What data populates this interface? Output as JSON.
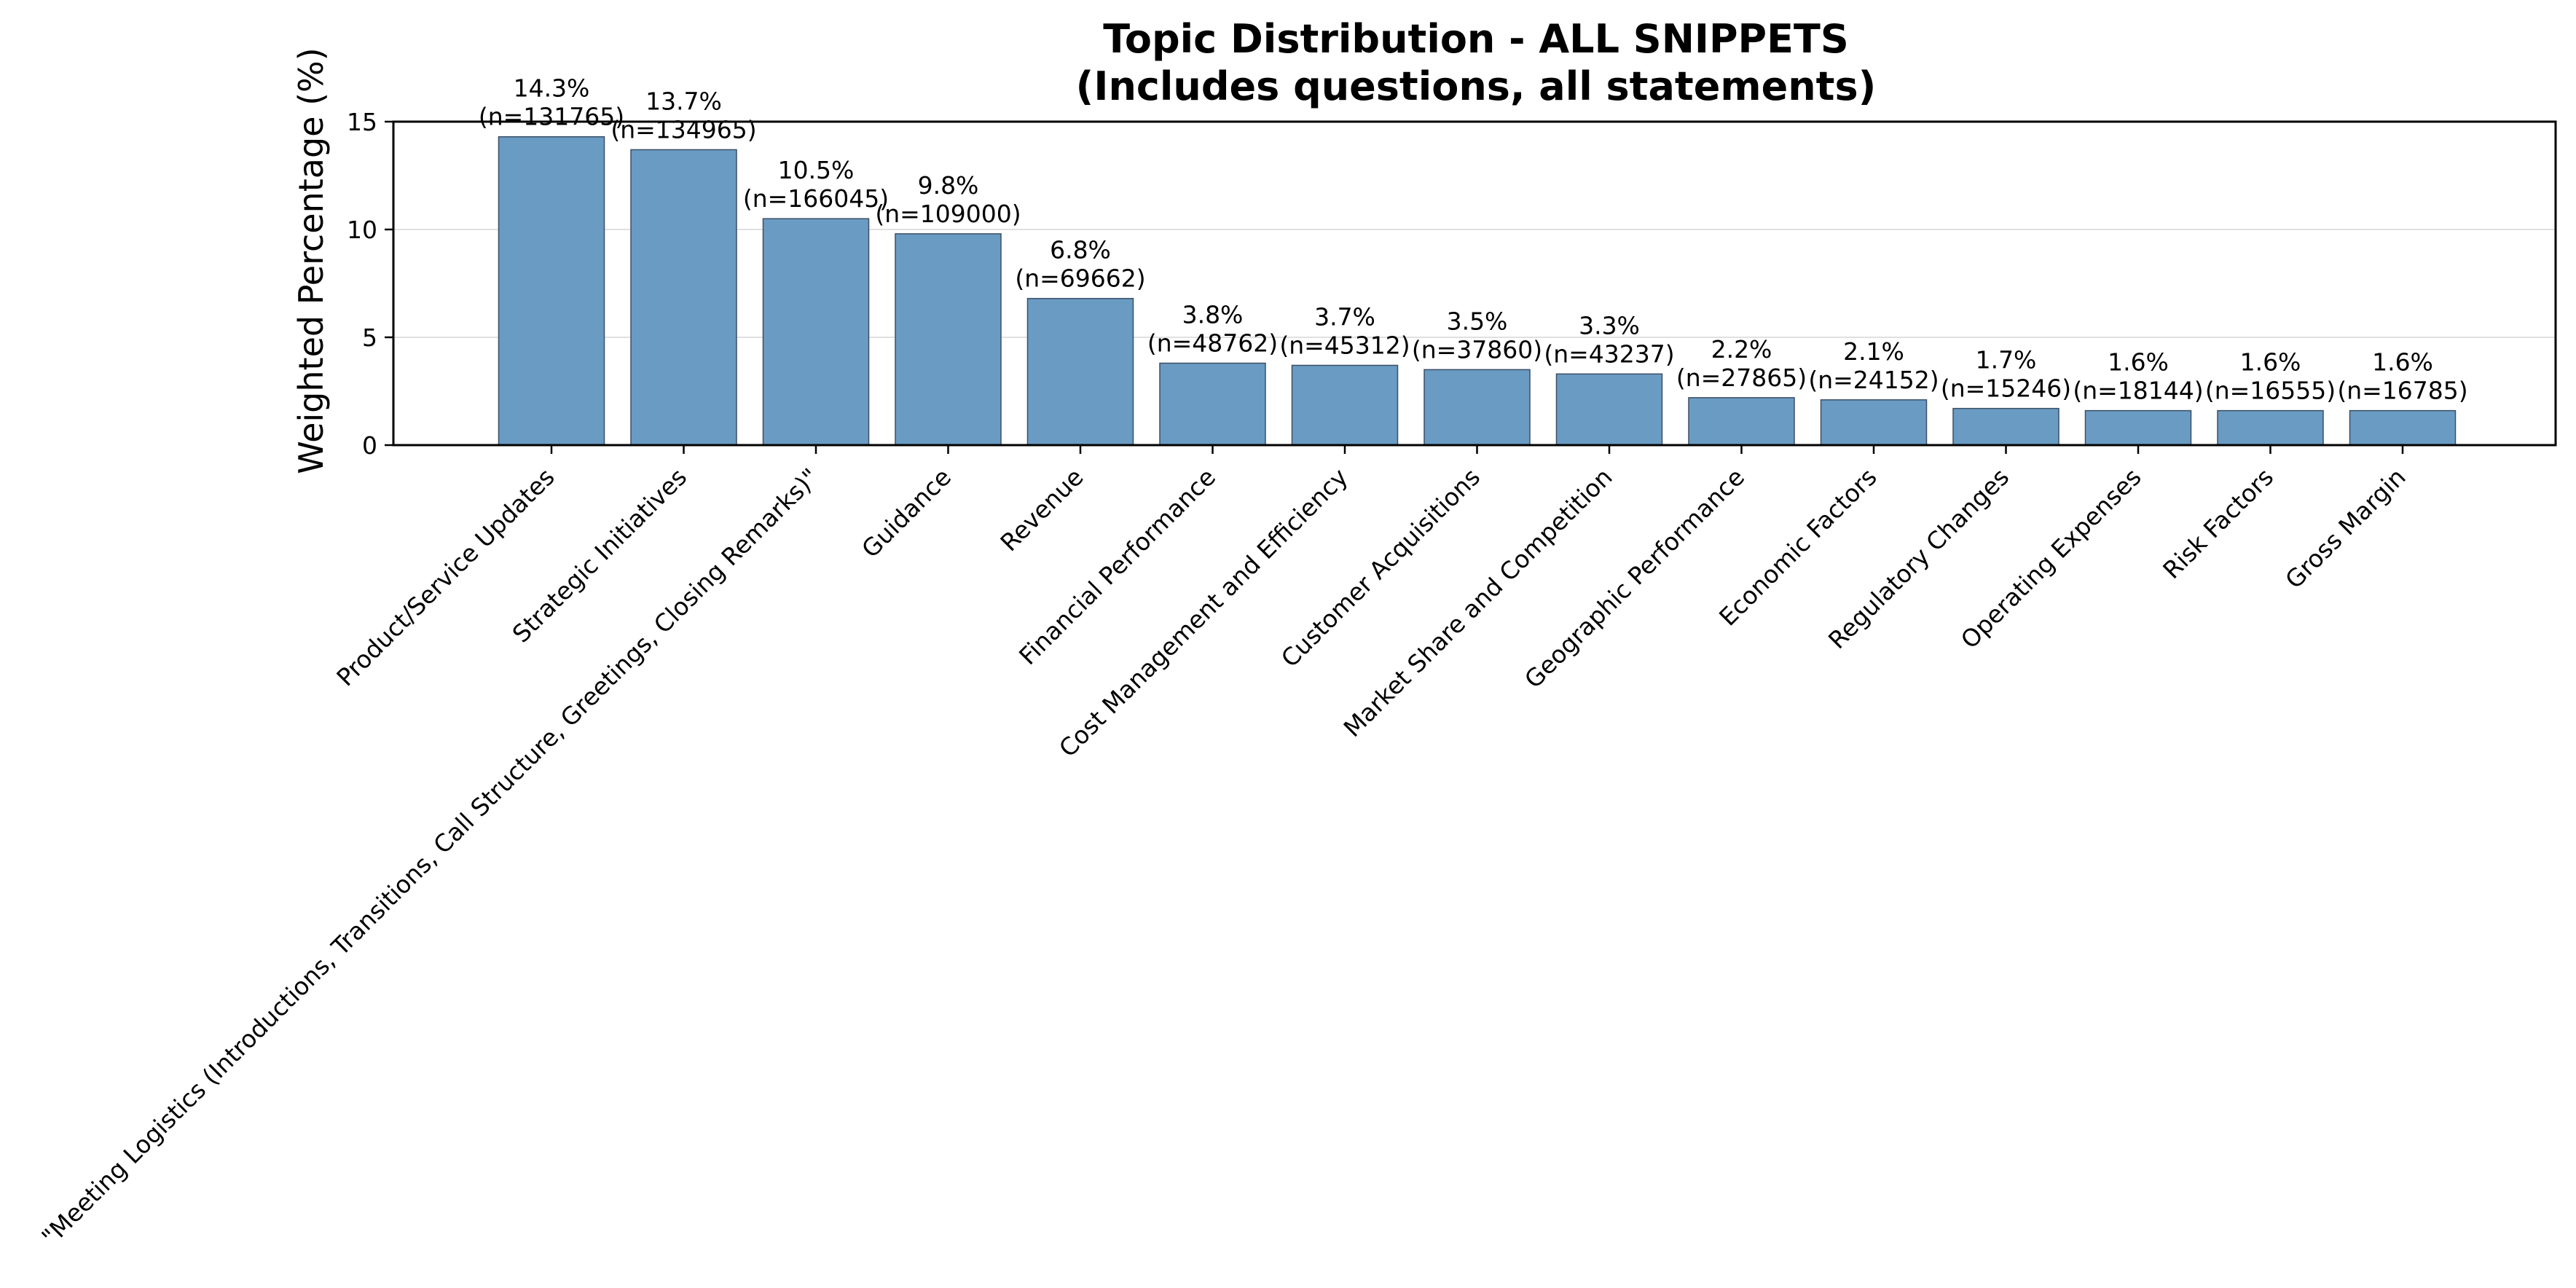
{
  "chart_data": {
    "type": "bar",
    "title_lines": [
      "Topic Distribution - ALL SNIPPETS",
      "(Includes questions, all statements)"
    ],
    "xlabel": "",
    "ylabel": "Weighted Percentage (%)",
    "ylim": [
      0,
      15
    ],
    "yticks": [
      0,
      5,
      10,
      15
    ],
    "grid": "horizontal",
    "legend": "none",
    "colors": {
      "bar_fill": "#6a9bc3",
      "bar_edge": "#3b4f66",
      "grid": "#e0e0e0",
      "axis": "#000000"
    },
    "categories": [
      "Product/Service Updates",
      "Strategic Initiatives",
      "\"Meeting Logistics (Introductions, Transitions, Call Structure, Greetings, Closing Remarks)\"",
      "Guidance",
      "Revenue",
      "Financial Performance",
      "Cost Management and Efficiency",
      "Customer Acquisitions",
      "Market Share and Competition",
      "Geographic Performance",
      "Economic Factors",
      "Regulatory Changes",
      "Operating Expenses",
      "Risk Factors",
      "Gross Margin"
    ],
    "values": [
      14.3,
      13.7,
      10.5,
      9.8,
      6.8,
      3.8,
      3.7,
      3.5,
      3.3,
      2.2,
      2.1,
      1.7,
      1.6,
      1.6,
      1.6
    ],
    "value_labels": [
      "14.3%",
      "13.7%",
      "10.5%",
      "9.8%",
      "6.8%",
      "3.8%",
      "3.7%",
      "3.5%",
      "3.3%",
      "2.2%",
      "2.1%",
      "1.7%",
      "1.6%",
      "1.6%",
      "1.6%"
    ],
    "counts": [
      131765,
      134965,
      166045,
      109000,
      69662,
      48762,
      45312,
      37860,
      43237,
      27865,
      24152,
      15246,
      18144,
      16555,
      16785
    ],
    "count_labels": [
      "(n=131765)",
      "(n=134965)",
      "(n=166045)",
      "(n=109000)",
      "(n=69662)",
      "(n=48762)",
      "(n=45312)",
      "(n=37860)",
      "(n=43237)",
      "(n=27865)",
      "(n=24152)",
      "(n=15246)",
      "(n=18144)",
      "(n=16555)",
      "(n=16785)"
    ]
  }
}
